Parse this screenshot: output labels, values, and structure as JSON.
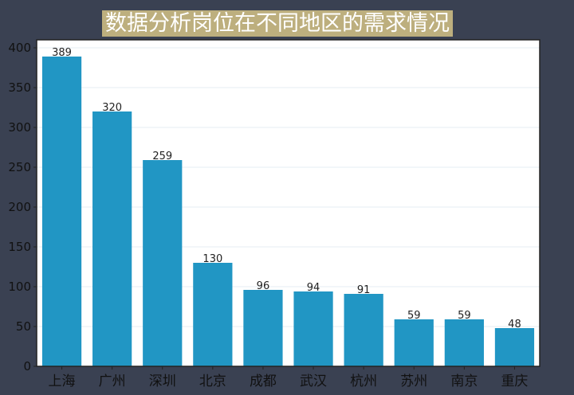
{
  "chart_data": {
    "type": "bar",
    "title": "数据分析岗位在不同地区的需求情况",
    "categories": [
      "上海",
      "广州",
      "深圳",
      "北京",
      "成都",
      "武汉",
      "杭州",
      "苏州",
      "南京",
      "重庆"
    ],
    "values": [
      389,
      320,
      259,
      130,
      96,
      94,
      91,
      59,
      59,
      48
    ],
    "labels": [
      "389",
      "320",
      "259",
      "130",
      "96",
      "94",
      "91",
      "59",
      "59",
      "48"
    ],
    "xlabel": "",
    "ylabel": "",
    "ylim": [
      0,
      410
    ],
    "yticks": [
      0,
      50,
      100,
      150,
      200,
      250,
      300,
      350,
      400
    ],
    "ytick_labels": [
      "0",
      "50",
      "100",
      "150",
      "200",
      "250",
      "300",
      "350",
      "400"
    ],
    "grid": true,
    "bar_color": "#2196c4",
    "title_bg": "#bdaf7e",
    "bg_color": "#3a4152"
  }
}
